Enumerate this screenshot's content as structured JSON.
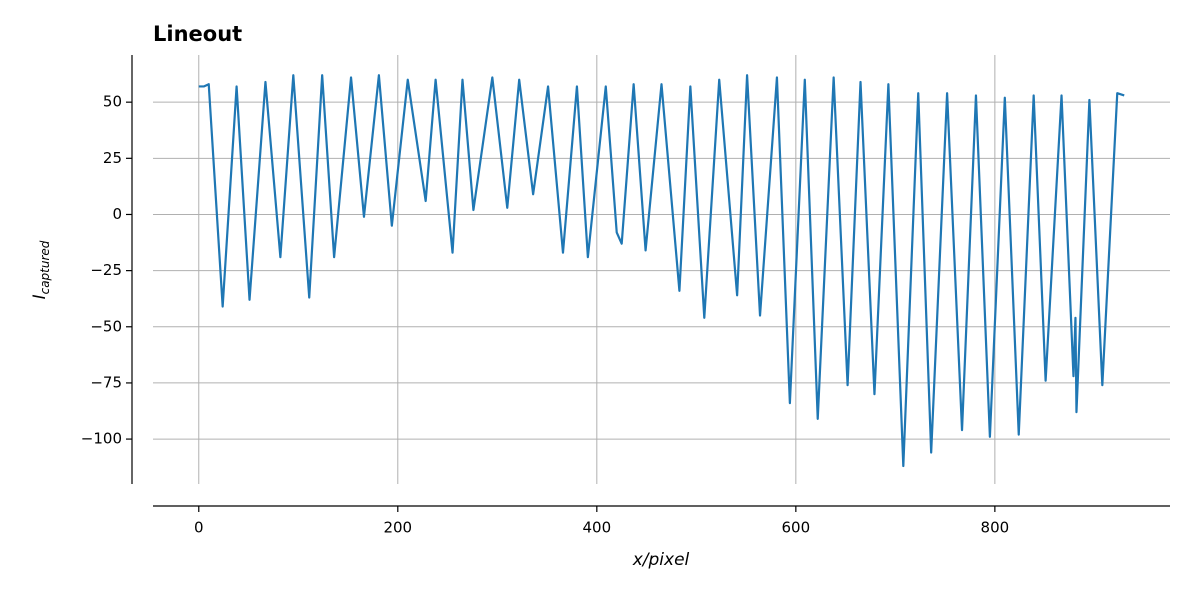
{
  "chart_data": {
    "type": "line",
    "title": "Lineout",
    "x_label": "x/pixel",
    "y_label": "I",
    "y_label_sub": "captured",
    "x": [
      0,
      5,
      10,
      24,
      38,
      51,
      67,
      82,
      95,
      111,
      124,
      136,
      153,
      166,
      181,
      194,
      210,
      228,
      238,
      255,
      265,
      276,
      295,
      310,
      322,
      336,
      351,
      366,
      380,
      391,
      409,
      420,
      425,
      437,
      449,
      465,
      483,
      494,
      508,
      523,
      541,
      551,
      564,
      581,
      594,
      609,
      622,
      638,
      652,
      665,
      679,
      693,
      708,
      723,
      736,
      752,
      767,
      781,
      795,
      810,
      824,
      839,
      851,
      867,
      879,
      881,
      882,
      895,
      908,
      923,
      930
    ],
    "series": [
      {
        "color": "#1f77b4",
        "values": [
          57,
          57,
          58,
          -41,
          57,
          -38,
          59,
          -19,
          62,
          -37,
          62,
          -19,
          61,
          -1,
          62,
          -5,
          60,
          6,
          60,
          -17,
          60,
          2,
          61,
          3,
          60,
          9,
          57,
          -17,
          57,
          -19,
          57,
          -8,
          -13,
          58,
          -16,
          58,
          -34,
          57,
          -46,
          60,
          -36,
          62,
          -45,
          61,
          -84,
          60,
          -91,
          61,
          -76,
          59,
          -80,
          58,
          -112,
          54,
          -106,
          54,
          -96,
          53,
          -99,
          52,
          -98,
          53,
          -74,
          53,
          -72,
          -46,
          -88,
          51,
          -76,
          54,
          53
        ]
      }
    ],
    "xlim": [
      -46,
      976
    ],
    "ylim": [
      -120,
      71
    ],
    "xticks": [
      0,
      200,
      400,
      600,
      800
    ],
    "yticks": [
      {
        "value": -100,
        "label": "−100"
      },
      {
        "value": -75,
        "label": "−75"
      },
      {
        "value": -50,
        "label": "−50"
      },
      {
        "value": -25,
        "label": "−25"
      },
      0,
      25,
      50
    ],
    "grid": true
  }
}
